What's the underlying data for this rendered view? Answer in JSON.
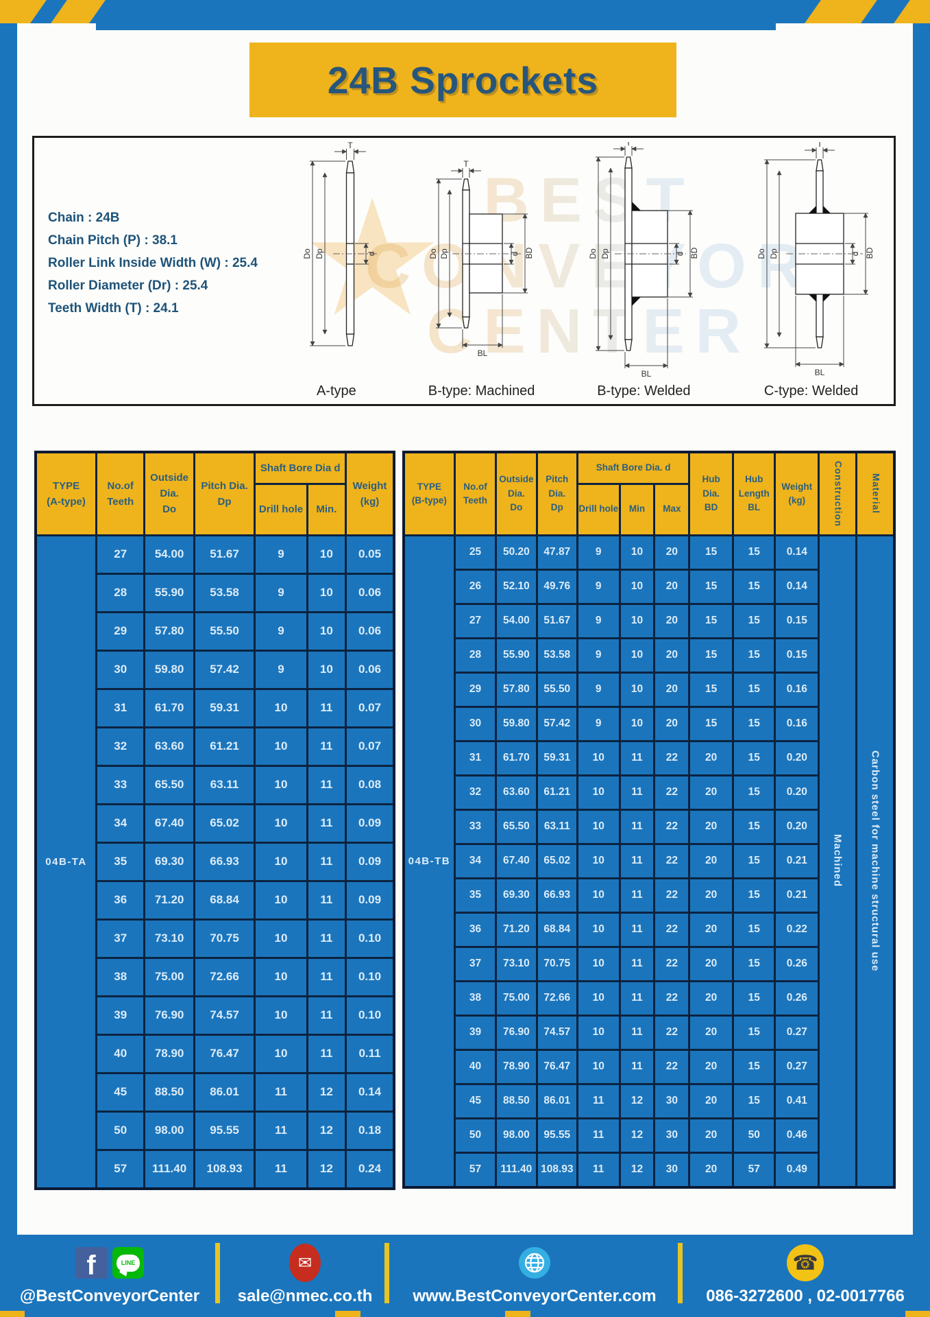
{
  "title": "24B Sprockets",
  "specs": [
    "Chain  : 24B",
    "Chain Pitch (P)  :  38.1",
    "Roller Link Inside Width (W)  :  25.4",
    "Roller Diameter (Dr)  : 25.4",
    "Teeth Width (T)  :  24.1"
  ],
  "watermark": {
    "star": "★",
    "lines": [
      "BEST",
      "CONVEYOR",
      "CENTER"
    ]
  },
  "diagrams": {
    "dims": {
      "t": "T",
      "do": "Do",
      "dp": "Dp",
      "d": "d",
      "bd": "BD",
      "bl": "BL"
    },
    "captions": [
      "A-type",
      "B-type: Machined",
      "B-type: Welded",
      "C-type: Welded"
    ]
  },
  "left_table": {
    "header": {
      "type": "TYPE\n(A-type)",
      "teeth": "No.of\nTeeth",
      "outside": "Outside\nDia.\nDo",
      "pitch": "Pitch Dia.\nDp",
      "shaft_bore": "Shaft Bore Dia d",
      "drill": "Drill hole",
      "min": "Min.",
      "weight": "Weight\n(kg)"
    },
    "type_value": "04B-TA",
    "rows": [
      [
        "27",
        "54.00",
        "51.67",
        "9",
        "10",
        "0.05"
      ],
      [
        "28",
        "55.90",
        "53.58",
        "9",
        "10",
        "0.06"
      ],
      [
        "29",
        "57.80",
        "55.50",
        "9",
        "10",
        "0.06"
      ],
      [
        "30",
        "59.80",
        "57.42",
        "9",
        "10",
        "0.06"
      ],
      [
        "31",
        "61.70",
        "59.31",
        "10",
        "11",
        "0.07"
      ],
      [
        "32",
        "63.60",
        "61.21",
        "10",
        "11",
        "0.07"
      ],
      [
        "33",
        "65.50",
        "63.11",
        "10",
        "11",
        "0.08"
      ],
      [
        "34",
        "67.40",
        "65.02",
        "10",
        "11",
        "0.09"
      ],
      [
        "35",
        "69.30",
        "66.93",
        "10",
        "11",
        "0.09"
      ],
      [
        "36",
        "71.20",
        "68.84",
        "10",
        "11",
        "0.09"
      ],
      [
        "37",
        "73.10",
        "70.75",
        "10",
        "11",
        "0.10"
      ],
      [
        "38",
        "75.00",
        "72.66",
        "10",
        "11",
        "0.10"
      ],
      [
        "39",
        "76.90",
        "74.57",
        "10",
        "11",
        "0.10"
      ],
      [
        "40",
        "78.90",
        "76.47",
        "10",
        "11",
        "0.11"
      ],
      [
        "45",
        "88.50",
        "86.01",
        "11",
        "12",
        "0.14"
      ],
      [
        "50",
        "98.00",
        "95.55",
        "11",
        "12",
        "0.18"
      ],
      [
        "57",
        "111.40",
        "108.93",
        "11",
        "12",
        "0.24"
      ]
    ]
  },
  "right_table": {
    "header": {
      "type": "TYPE\n(B-type)",
      "teeth": "No.of\nTeeth",
      "outside": "Outside\nDia.\nDo",
      "pitch": "Pitch\nDia.\nDp",
      "shaft_bore": "Shaft Bore Dia.  d",
      "drill": "Drill hole",
      "min": "Min",
      "max": "Max",
      "hub_dia": "Hub\nDia.\nBD",
      "hub_len": "Hub\nLength\nBL",
      "weight": "Weight\n(kg)",
      "construction": "Construction",
      "material": "Material"
    },
    "type_value": "04B-TB",
    "construction_value": "Machined",
    "material_value": "Carbon steel for machine structural use",
    "rows": [
      [
        "25",
        "50.20",
        "47.87",
        "9",
        "10",
        "20",
        "15",
        "15",
        "0.14"
      ],
      [
        "26",
        "52.10",
        "49.76",
        "9",
        "10",
        "20",
        "15",
        "15",
        "0.14"
      ],
      [
        "27",
        "54.00",
        "51.67",
        "9",
        "10",
        "20",
        "15",
        "15",
        "0.15"
      ],
      [
        "28",
        "55.90",
        "53.58",
        "9",
        "10",
        "20",
        "15",
        "15",
        "0.15"
      ],
      [
        "29",
        "57.80",
        "55.50",
        "9",
        "10",
        "20",
        "15",
        "15",
        "0.16"
      ],
      [
        "30",
        "59.80",
        "57.42",
        "9",
        "10",
        "20",
        "15",
        "15",
        "0.16"
      ],
      [
        "31",
        "61.70",
        "59.31",
        "10",
        "11",
        "22",
        "20",
        "15",
        "0.20"
      ],
      [
        "32",
        "63.60",
        "61.21",
        "10",
        "11",
        "22",
        "20",
        "15",
        "0.20"
      ],
      [
        "33",
        "65.50",
        "63.11",
        "10",
        "11",
        "22",
        "20",
        "15",
        "0.20"
      ],
      [
        "34",
        "67.40",
        "65.02",
        "10",
        "11",
        "22",
        "20",
        "15",
        "0.21"
      ],
      [
        "35",
        "69.30",
        "66.93",
        "10",
        "11",
        "22",
        "20",
        "15",
        "0.21"
      ],
      [
        "36",
        "71.20",
        "68.84",
        "10",
        "11",
        "22",
        "20",
        "15",
        "0.22"
      ],
      [
        "37",
        "73.10",
        "70.75",
        "10",
        "11",
        "22",
        "20",
        "15",
        "0.26"
      ],
      [
        "38",
        "75.00",
        "72.66",
        "10",
        "11",
        "22",
        "20",
        "15",
        "0.26"
      ],
      [
        "39",
        "76.90",
        "74.57",
        "10",
        "11",
        "22",
        "20",
        "15",
        "0.27"
      ],
      [
        "40",
        "78.90",
        "76.47",
        "10",
        "11",
        "22",
        "20",
        "15",
        "0.27"
      ],
      [
        "45",
        "88.50",
        "86.01",
        "11",
        "12",
        "30",
        "20",
        "15",
        "0.41"
      ],
      [
        "50",
        "98.00",
        "95.55",
        "11",
        "12",
        "30",
        "20",
        "50",
        "0.46"
      ],
      [
        "57",
        "111.40",
        "108.93",
        "11",
        "12",
        "30",
        "20",
        "57",
        "0.49"
      ]
    ]
  },
  "footer": {
    "facebook_line_label": "@BestConveyorCenter",
    "line_badge": "LINE",
    "fb_letter": "f",
    "mail_glyph": "✉",
    "phone_glyph": "☎",
    "email": "sale@nmec.co.th",
    "website": "www.BestConveyorCenter.com",
    "phone": "086-3272600 , 02-0017766"
  },
  "colors": {
    "blue": "#1b75bc",
    "yellow": "#efb31c",
    "navy_border": "#0c2340",
    "header_text": "#2b5f7e",
    "cell_text": "#dcecf9",
    "title_text": "#27567c"
  }
}
